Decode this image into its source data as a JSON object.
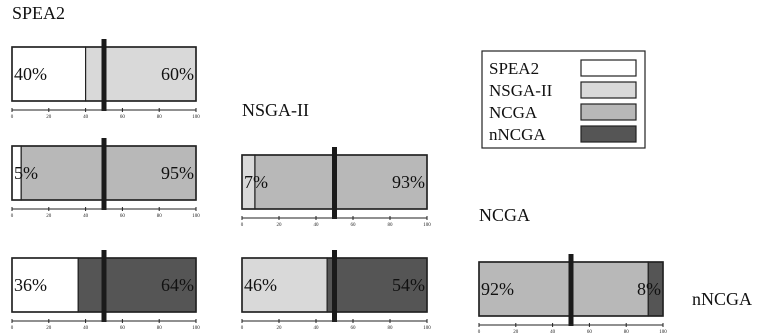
{
  "chart_data": [
    {
      "type": "bar",
      "row_label": "SPEA2",
      "segments": [
        {
          "series": "SPEA2",
          "value": 40,
          "label": "40%"
        },
        {
          "series": "NSGA-II",
          "value": 60,
          "label": "60%"
        }
      ],
      "marker": 50,
      "xlim": [
        0,
        100
      ],
      "ticks": [
        0,
        20,
        40,
        60,
        80,
        100
      ]
    },
    {
      "type": "bar",
      "row_label": "",
      "segments": [
        {
          "series": "SPEA2",
          "value": 5,
          "label": "5%"
        },
        {
          "series": "NCGA",
          "value": 95,
          "label": "95%"
        }
      ],
      "marker": 50,
      "xlim": [
        0,
        100
      ],
      "ticks": [
        0,
        20,
        40,
        60,
        80,
        100
      ]
    },
    {
      "type": "bar",
      "row_label": "",
      "segments": [
        {
          "series": "SPEA2",
          "value": 36,
          "label": "36%"
        },
        {
          "series": "nNCGA",
          "value": 64,
          "label": "64%"
        }
      ],
      "marker": 50,
      "xlim": [
        0,
        100
      ],
      "ticks": [
        0,
        20,
        40,
        60,
        80,
        100
      ]
    },
    {
      "type": "bar",
      "row_label": "NSGA-II",
      "segments": [
        {
          "series": "NSGA-II",
          "value": 7,
          "label": "7%"
        },
        {
          "series": "NCGA",
          "value": 93,
          "label": "93%"
        }
      ],
      "marker": 50,
      "xlim": [
        0,
        100
      ],
      "ticks": [
        0,
        20,
        40,
        60,
        80,
        100
      ]
    },
    {
      "type": "bar",
      "row_label": "",
      "segments": [
        {
          "series": "NSGA-II",
          "value": 46,
          "label": "46%"
        },
        {
          "series": "nNCGA",
          "value": 54,
          "label": "54%"
        }
      ],
      "marker": 50,
      "xlim": [
        0,
        100
      ],
      "ticks": [
        0,
        20,
        40,
        60,
        80,
        100
      ]
    },
    {
      "type": "bar",
      "row_label": "NCGA",
      "segments": [
        {
          "series": "NCGA",
          "value": 92,
          "label": "92%"
        },
        {
          "series": "nNCGA",
          "value": 8,
          "label": "8%"
        }
      ],
      "marker": 50,
      "xlim": [
        0,
        100
      ],
      "ticks": [
        0,
        20,
        40,
        60,
        80,
        100
      ]
    }
  ],
  "side_labels": {
    "nncga": "nNCGA"
  },
  "legend": {
    "items": [
      {
        "name": "SPEA2",
        "color": "#ffffff"
      },
      {
        "name": "NSGA-II",
        "color": "#d9d9d9"
      },
      {
        "name": "NCGA",
        "color": "#b8b8b8"
      },
      {
        "name": "nNCGA",
        "color": "#555555"
      }
    ]
  }
}
